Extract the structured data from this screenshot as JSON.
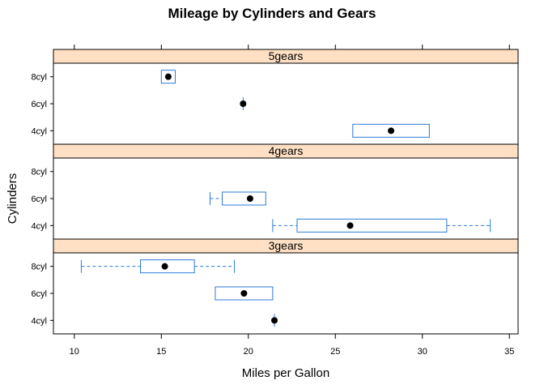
{
  "chart_data": {
    "type": "box",
    "title": "Mileage by Cylinders and Gears",
    "xlabel": "Miles per Gallon",
    "ylabel": "Cylinders",
    "xlim": [
      8.8,
      35.5
    ],
    "x_ticks": [
      "10",
      "15",
      "20",
      "25",
      "30",
      "35"
    ],
    "y_categories": [
      "4cyl",
      "6cyl",
      "8cyl"
    ],
    "colors": {
      "box": "#2b7bd6",
      "median": "#000000",
      "strip": "#ffe0c4",
      "frame": "#000000"
    },
    "panels": [
      {
        "strip": "5gears",
        "boxes": {
          "4cyl": {
            "lo": 26.0,
            "q1": 26.0,
            "med": 28.2,
            "q3": 30.4,
            "hi": 30.4
          },
          "6cyl": {
            "lo": 19.7,
            "q1": 19.7,
            "med": 19.7,
            "q3": 19.7,
            "hi": 19.7
          },
          "8cyl": {
            "lo": 15.0,
            "q1": 15.0,
            "med": 15.4,
            "q3": 15.8,
            "hi": 15.8
          }
        }
      },
      {
        "strip": "4gears",
        "boxes": {
          "4cyl": {
            "lo": 21.4,
            "q1": 22.8,
            "med": 25.85,
            "q3": 31.4,
            "hi": 33.9
          },
          "6cyl": {
            "lo": 17.8,
            "q1": 18.5,
            "med": 20.1,
            "q3": 21.0,
            "hi": 21.0
          }
        }
      },
      {
        "strip": "3gears",
        "boxes": {
          "4cyl": {
            "lo": 21.5,
            "q1": 21.5,
            "med": 21.5,
            "q3": 21.5,
            "hi": 21.5
          },
          "6cyl": {
            "lo": 18.1,
            "q1": 18.1,
            "med": 19.75,
            "q3": 21.4,
            "hi": 21.4
          },
          "8cyl": {
            "lo": 10.4,
            "q1": 13.8,
            "med": 15.2,
            "q3": 16.9,
            "hi": 19.2
          }
        }
      }
    ]
  }
}
